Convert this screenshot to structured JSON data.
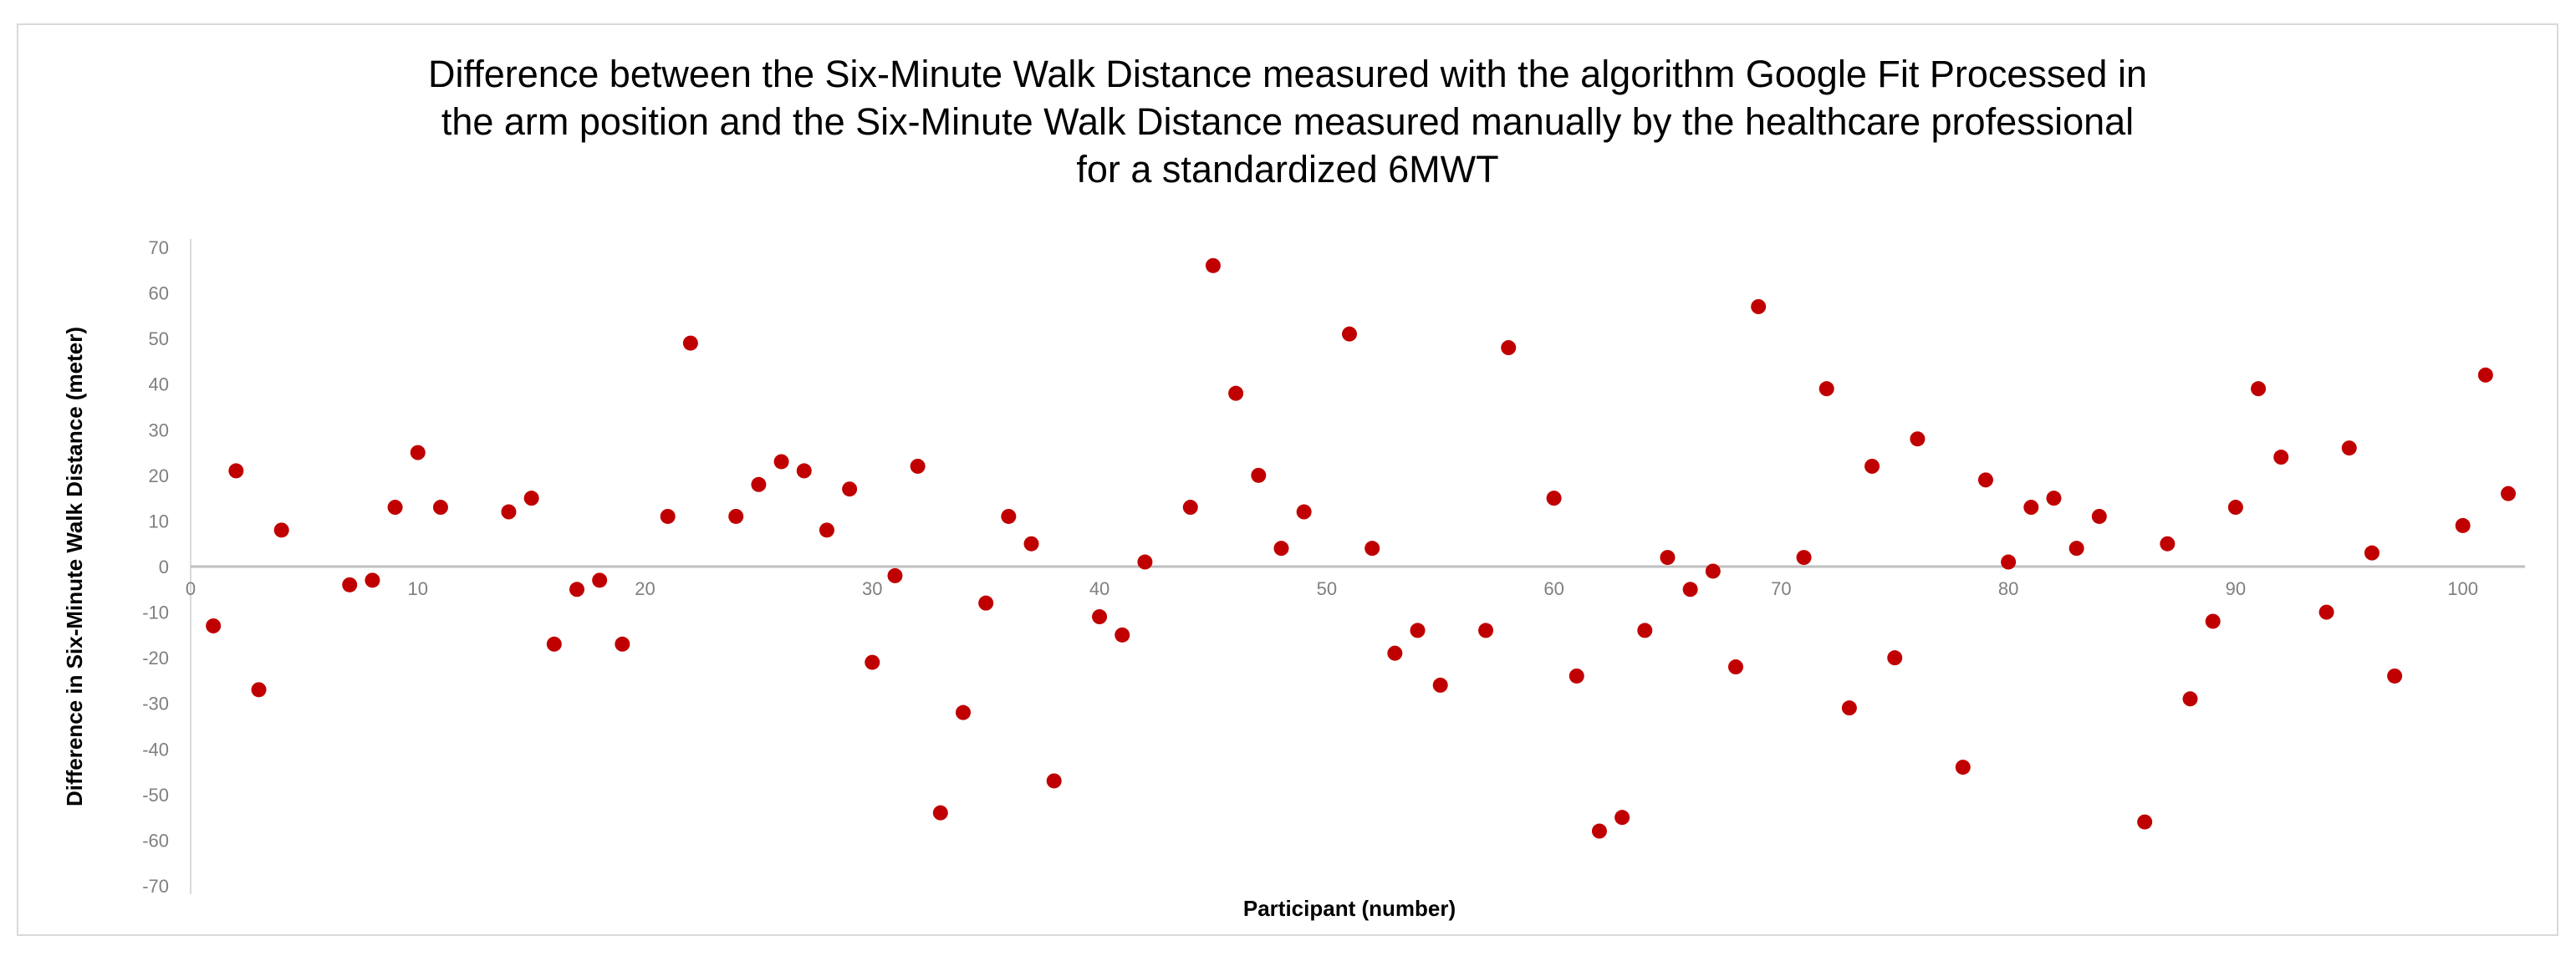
{
  "chart_data": {
    "type": "scatter",
    "title_lines": [
      "Difference between the Six-Minute Walk Distance measured with the algorithm Google Fit Processed in",
      "the arm position and the Six-Minute Walk Distance measured manually by the healthcare professional",
      "for a standardized 6MWT"
    ],
    "xlabel": "Participant (number)",
    "ylabel": "Difference in Six-Minute Walk Distance (meter)",
    "xlim": [
      0,
      102
    ],
    "ylim": [
      -70,
      70
    ],
    "x_ticks": [
      0,
      10,
      20,
      30,
      40,
      50,
      60,
      70,
      80,
      90,
      100
    ],
    "y_ticks": [
      70,
      60,
      50,
      40,
      30,
      20,
      10,
      0,
      -10,
      -20,
      -30,
      -40,
      -50,
      -60,
      -70
    ],
    "grid": false,
    "marker_color": "#c00000",
    "points": [
      {
        "x": 1,
        "y": -13
      },
      {
        "x": 2,
        "y": 21
      },
      {
        "x": 3,
        "y": -27
      },
      {
        "x": 4,
        "y": 8
      },
      {
        "x": 7,
        "y": -4
      },
      {
        "x": 8,
        "y": -3
      },
      {
        "x": 9,
        "y": 13
      },
      {
        "x": 10,
        "y": 25
      },
      {
        "x": 11,
        "y": 13
      },
      {
        "x": 14,
        "y": 12
      },
      {
        "x": 15,
        "y": 15
      },
      {
        "x": 16,
        "y": -17
      },
      {
        "x": 17,
        "y": -5
      },
      {
        "x": 18,
        "y": -3
      },
      {
        "x": 19,
        "y": -17
      },
      {
        "x": 21,
        "y": 11
      },
      {
        "x": 22,
        "y": 49
      },
      {
        "x": 24,
        "y": 11
      },
      {
        "x": 25,
        "y": 18
      },
      {
        "x": 26,
        "y": 23
      },
      {
        "x": 27,
        "y": 21
      },
      {
        "x": 28,
        "y": 8
      },
      {
        "x": 29,
        "y": 17
      },
      {
        "x": 30,
        "y": -21
      },
      {
        "x": 31,
        "y": -2
      },
      {
        "x": 32,
        "y": 22
      },
      {
        "x": 33,
        "y": -54
      },
      {
        "x": 34,
        "y": -32
      },
      {
        "x": 35,
        "y": -8
      },
      {
        "x": 36,
        "y": 11
      },
      {
        "x": 37,
        "y": 5
      },
      {
        "x": 38,
        "y": -47
      },
      {
        "x": 40,
        "y": -11
      },
      {
        "x": 41,
        "y": -15
      },
      {
        "x": 42,
        "y": 1
      },
      {
        "x": 44,
        "y": 13
      },
      {
        "x": 45,
        "y": 66
      },
      {
        "x": 46,
        "y": 38
      },
      {
        "x": 47,
        "y": 20
      },
      {
        "x": 48,
        "y": 4
      },
      {
        "x": 49,
        "y": 12
      },
      {
        "x": 51,
        "y": 51
      },
      {
        "x": 52,
        "y": 4
      },
      {
        "x": 53,
        "y": -19
      },
      {
        "x": 54,
        "y": -14
      },
      {
        "x": 55,
        "y": -26
      },
      {
        "x": 57,
        "y": -14
      },
      {
        "x": 58,
        "y": 48
      },
      {
        "x": 60,
        "y": 15
      },
      {
        "x": 61,
        "y": -24
      },
      {
        "x": 62,
        "y": -58
      },
      {
        "x": 63,
        "y": -55
      },
      {
        "x": 64,
        "y": -14
      },
      {
        "x": 65,
        "y": 2
      },
      {
        "x": 66,
        "y": -5
      },
      {
        "x": 67,
        "y": -1
      },
      {
        "x": 68,
        "y": -22
      },
      {
        "x": 69,
        "y": 57
      },
      {
        "x": 71,
        "y": 2
      },
      {
        "x": 72,
        "y": 39
      },
      {
        "x": 73,
        "y": -31
      },
      {
        "x": 74,
        "y": 22
      },
      {
        "x": 75,
        "y": -20
      },
      {
        "x": 76,
        "y": 28
      },
      {
        "x": 78,
        "y": -44
      },
      {
        "x": 79,
        "y": 19
      },
      {
        "x": 80,
        "y": 1
      },
      {
        "x": 81,
        "y": 13
      },
      {
        "x": 82,
        "y": 15
      },
      {
        "x": 83,
        "y": 4
      },
      {
        "x": 84,
        "y": 11
      },
      {
        "x": 86,
        "y": -56
      },
      {
        "x": 87,
        "y": 5
      },
      {
        "x": 88,
        "y": -29
      },
      {
        "x": 89,
        "y": -12
      },
      {
        "x": 90,
        "y": 13
      },
      {
        "x": 91,
        "y": 39
      },
      {
        "x": 92,
        "y": 24
      },
      {
        "x": 94,
        "y": -10
      },
      {
        "x": 95,
        "y": 26
      },
      {
        "x": 96,
        "y": 3
      },
      {
        "x": 97,
        "y": -24
      },
      {
        "x": 100,
        "y": 9
      },
      {
        "x": 101,
        "y": 42
      },
      {
        "x": 102,
        "y": 16
      }
    ]
  }
}
